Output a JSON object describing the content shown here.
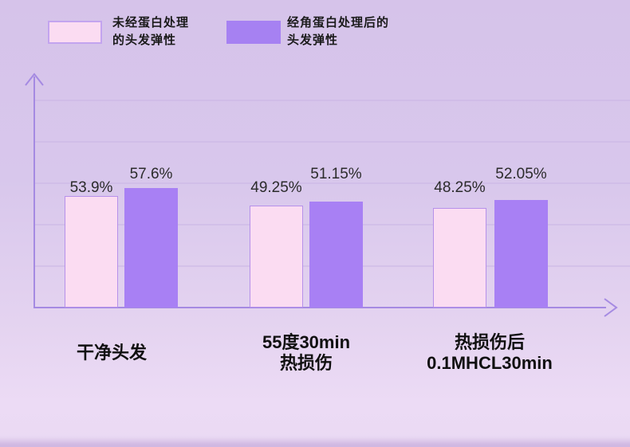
{
  "legend": {
    "items": [
      {
        "label": "未经蛋白处理\n的头发弹性",
        "swatch_color": "#fbdcf2",
        "swatch_border": "#c3a4ef"
      },
      {
        "label": "经角蛋白处理后的\n头发弹性",
        "swatch_color": "#a681f2",
        "swatch_border": "#a681f2"
      }
    ]
  },
  "chart_data": {
    "type": "bar",
    "categories": [
      "干净头发",
      "55度30min\n热损伤",
      "热损伤后\n0.1MHCL30min"
    ],
    "series": [
      {
        "name": "未经蛋白处理的头发弹性",
        "values": [
          53.9,
          49.25,
          48.25
        ],
        "data_labels": [
          "53.9%",
          "49.25%",
          "48.25%"
        ],
        "fill": "#fbdcf2",
        "border": "#b691ea"
      },
      {
        "name": "经角蛋白处理后的头发弹性",
        "values": [
          57.6,
          51.15,
          52.05
        ],
        "data_labels": [
          "57.6%",
          "51.15%",
          "52.05%"
        ],
        "fill": "#a880f4",
        "border": "#a880f4"
      }
    ],
    "title": "",
    "xlabel": "",
    "ylabel": "",
    "ylim": [
      0,
      113
    ],
    "gridline_values": [
      20,
      40,
      60,
      80,
      100
    ],
    "grid": true,
    "legend_position": "top-left",
    "colors": {
      "axis": "#a58ae2",
      "gridline": "#c9b4e4",
      "category_text": "#101010",
      "value_text": "#2b2b2b",
      "background_top": "#d6c3ea",
      "background_bottom": "#ecdbf5"
    }
  }
}
